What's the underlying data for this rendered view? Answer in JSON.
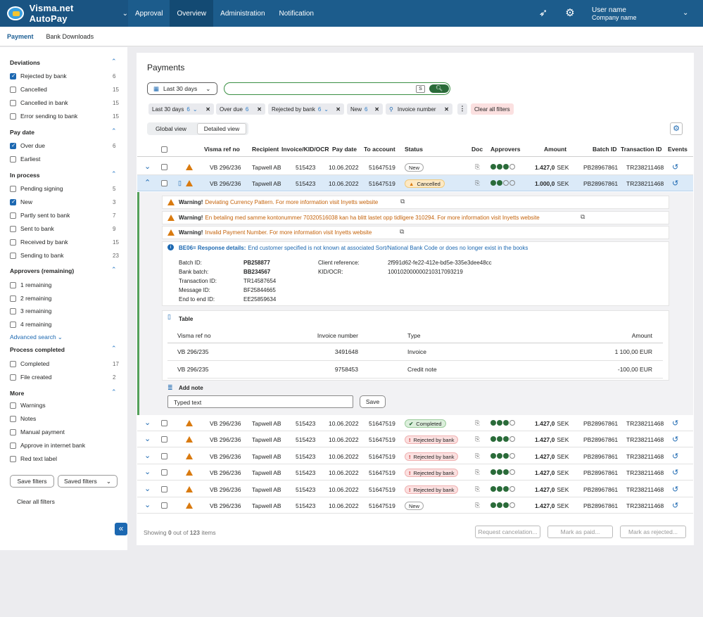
{
  "app": {
    "title": "Visma.net AutoPay",
    "nav": [
      "Approval",
      "Overview",
      "Administration",
      "Notification"
    ],
    "user": "User name",
    "company": "Company name"
  },
  "subnav": [
    "Payment",
    "Bank Downloads"
  ],
  "sidebar": {
    "groups": [
      {
        "title": "Deviations",
        "items": [
          {
            "label": "Rejected by bank",
            "count": "6",
            "checked": true
          },
          {
            "label": "Cancelled",
            "count": "15"
          },
          {
            "label": "Cancelled in bank",
            "count": "15"
          },
          {
            "label": "Error sending to bank",
            "count": "15"
          }
        ]
      },
      {
        "title": "Pay date",
        "items": [
          {
            "label": "Over due",
            "count": "6",
            "checked": true
          },
          {
            "label": "Earliest",
            "count": ""
          }
        ]
      },
      {
        "title": "In process",
        "items": [
          {
            "label": "Pending signing",
            "count": "5"
          },
          {
            "label": "New",
            "count": "3",
            "checked": true
          },
          {
            "label": "Partly sent to bank",
            "count": "7"
          },
          {
            "label": "Sent to bank",
            "count": "9"
          },
          {
            "label": "Received by bank",
            "count": "15"
          },
          {
            "label": "Sending to bank",
            "count": "23"
          }
        ]
      },
      {
        "title": "Approvers (remaining)",
        "items": [
          {
            "label": "1 remaining",
            "count": ""
          },
          {
            "label": "2 remaining",
            "count": ""
          },
          {
            "label": "3 remaining",
            "count": ""
          },
          {
            "label": "4 remaining",
            "count": ""
          }
        ]
      },
      {
        "title": "Process completed",
        "items": [
          {
            "label": "Completed",
            "count": "17"
          },
          {
            "label": "File created",
            "count": "2"
          }
        ]
      },
      {
        "title": "More",
        "items": [
          {
            "label": "Warnings",
            "count": ""
          },
          {
            "label": "Notes",
            "count": ""
          },
          {
            "label": "Manual payment",
            "count": ""
          },
          {
            "label": "Approve in internet bank",
            "count": ""
          },
          {
            "label": "Red text label",
            "count": ""
          }
        ]
      }
    ],
    "advanced": "Advanced search",
    "save_filters": "Save filters",
    "saved_filters": "Saved filters",
    "clear": "Clear all filters"
  },
  "main": {
    "title": "Payments",
    "date_range": "Last 30 days",
    "search_kbd": "S",
    "chips": [
      {
        "label": "Last 30 days",
        "n": "6"
      },
      {
        "label": "Over due",
        "n": "6"
      },
      {
        "label": "Rejected by bank",
        "n": "6"
      },
      {
        "label": "New",
        "n": "6"
      },
      {
        "label": "Invoice number",
        "n": ""
      }
    ],
    "clear_all": "Clear all filters",
    "global_view": "Global view",
    "detailed_view": "Detailed view",
    "columns": [
      "Visma ref no",
      "Recipient",
      "Invoice/KID/OCR",
      "Pay date",
      "To account",
      "Status",
      "Doc",
      "Approvers",
      "Amount",
      "Batch ID",
      "Transaction ID",
      "Events"
    ],
    "rows": [
      {
        "ref": "VB 296/236",
        "rec": "Tapwell AB",
        "inv": "515423",
        "date": "10.06.2022",
        "acct": "51647519",
        "status": "New",
        "amount": "1.427,0",
        "cur": "SEK",
        "batch": "PB28967861",
        "tx": "TR238211468"
      },
      {
        "ref": "VB 296/236",
        "rec": "Tapwell AB",
        "inv": "515423",
        "date": "10.06.2022",
        "acct": "51647519",
        "status": "Cancelled",
        "amount": "1.000,0",
        "cur": "SEK",
        "batch": "PB28967861",
        "tx": "TR238211468"
      },
      {
        "ref": "VB 296/236",
        "rec": "Tapwell AB",
        "inv": "515423",
        "date": "10.06.2022",
        "acct": "51647519",
        "status": "Completed",
        "amount": "1.427,0",
        "cur": "SEK",
        "batch": "PB28967861",
        "tx": "TR238211468"
      },
      {
        "ref": "VB 296/236",
        "rec": "Tapwell AB",
        "inv": "515423",
        "date": "10.06.2022",
        "acct": "51647519",
        "status": "Rejected by bank",
        "amount": "1.427,0",
        "cur": "SEK",
        "batch": "PB28967861",
        "tx": "TR238211468"
      },
      {
        "ref": "VB 296/236",
        "rec": "Tapwell AB",
        "inv": "515423",
        "date": "10.06.2022",
        "acct": "51647519",
        "status": "Rejected by bank",
        "amount": "1.427,0",
        "cur": "SEK",
        "batch": "PB28967861",
        "tx": "TR238211468"
      },
      {
        "ref": "VB 296/236",
        "rec": "Tapwell AB",
        "inv": "515423",
        "date": "10.06.2022",
        "acct": "51647519",
        "status": "Rejected by bank",
        "amount": "1.427,0",
        "cur": "SEK",
        "batch": "PB28967861",
        "tx": "TR238211468"
      },
      {
        "ref": "VB 296/236",
        "rec": "Tapwell AB",
        "inv": "515423",
        "date": "10.06.2022",
        "acct": "51647519",
        "status": "Rejected by bank",
        "amount": "1.427,0",
        "cur": "SEK",
        "batch": "PB28967861",
        "tx": "TR238211468"
      },
      {
        "ref": "VB 296/236",
        "rec": "Tapwell AB",
        "inv": "515423",
        "date": "10.06.2022",
        "acct": "51647519",
        "status": "New",
        "amount": "1.427,0",
        "cur": "SEK",
        "batch": "PB28967861",
        "tx": "TR238211468"
      }
    ],
    "warnings": [
      {
        "b": "Warning!",
        "t": "Deviating Currency Pattern. For more information visit Inyetts website"
      },
      {
        "b": "Warning!",
        "t": "En betaling med samme kontonummer 70320516038 kan ha blitt lastet opp tidligere 310294. For more information visit Inyetts website"
      },
      {
        "b": "Warning!",
        "t": "Invalid Payment Number. For more information visit Inyetts website"
      }
    ],
    "info": {
      "b": "BE06= Response details:",
      "t": "End customer specified is not known at associated Sort/National Bank Code or does no longer exist in the books"
    },
    "details": [
      [
        "Batch ID:",
        "PB258877"
      ],
      [
        "Bank batch:",
        "BB234567"
      ],
      [
        "Transaction ID:",
        "TR14587654"
      ],
      [
        "Message ID:",
        "BF25844665"
      ],
      [
        "End to end ID:",
        "EE25859634"
      ]
    ],
    "details2": [
      [
        "Client reference:",
        "2f991d62-fe22-412e-bd5e-335e3dee48cc"
      ],
      [
        "KID/OCR:",
        "100102000000210317093219"
      ]
    ],
    "table": {
      "title": "Table",
      "cols": [
        "Visma ref no",
        "Invoice number",
        "Type",
        "Amount"
      ],
      "rows": [
        [
          "VB 296/235",
          "3491648",
          "Invoice",
          "1 100,00 EUR"
        ],
        [
          "VB 296/235",
          "9758453",
          "Credit note",
          "-100,00 EUR"
        ]
      ]
    },
    "note": {
      "title": "Add note",
      "value": "Typed text",
      "save": "Save"
    },
    "footer": {
      "showing": "Showing",
      "zero": "0",
      "outof": "out of",
      "total": "123",
      "items": "items",
      "b1": "Request cancelation...",
      "b2": "Mark as paid...",
      "b3": "Mark as rejected..."
    }
  }
}
